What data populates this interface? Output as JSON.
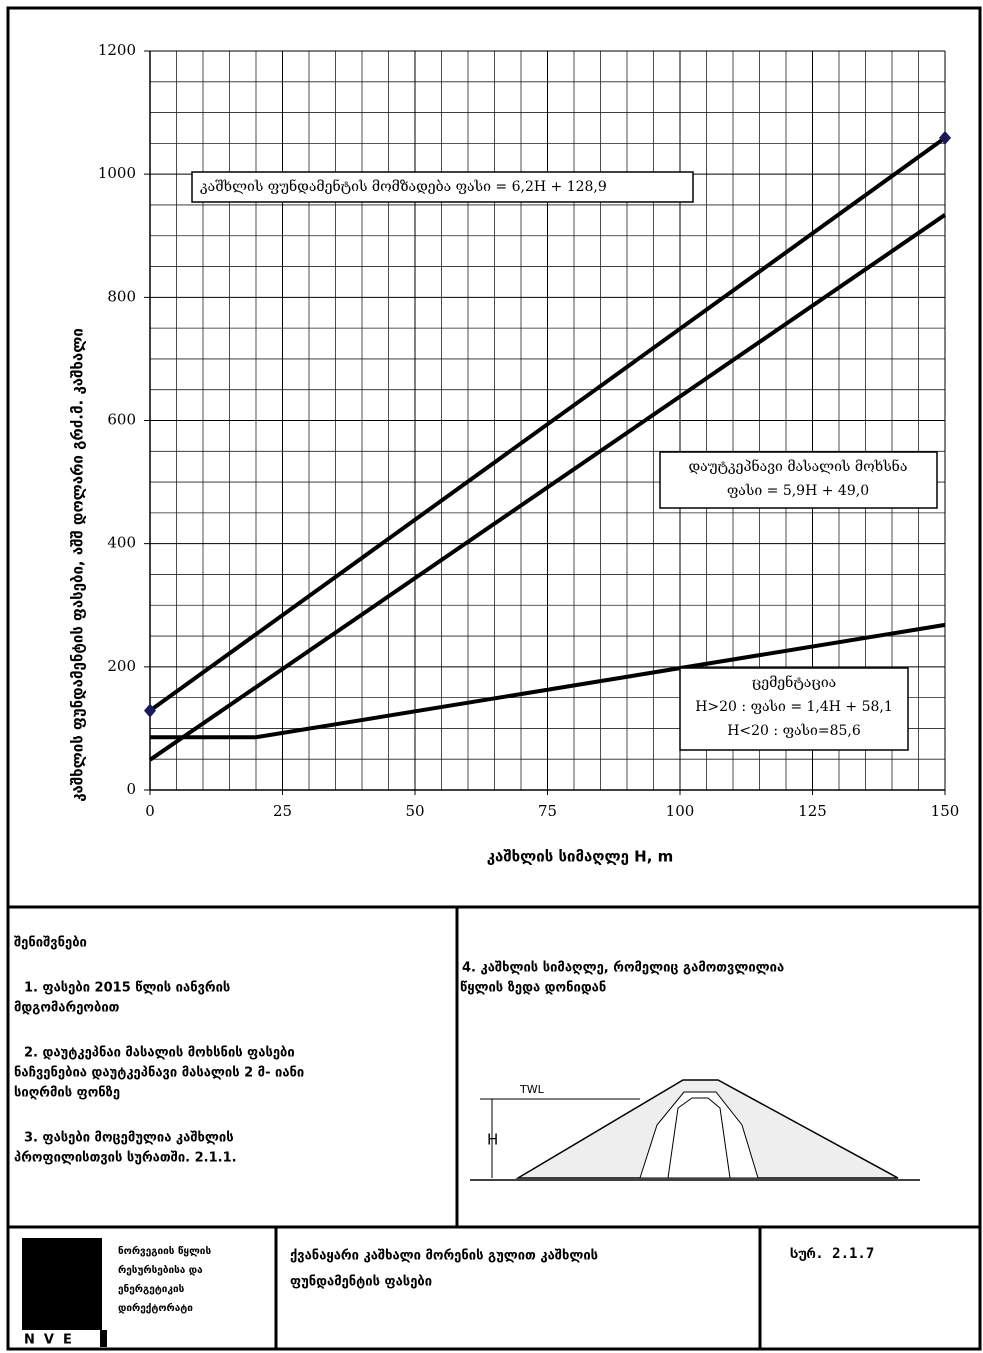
{
  "chart_data": {
    "type": "line",
    "y_label": "კაშხლის ფუნდამენტის ფასები,  აშშ დოლარი გრძ.მ. კაშხალი",
    "x_label": "კაშხლის სიმაღლე H, m",
    "xlim": [
      0,
      150
    ],
    "ylim": [
      0,
      1200
    ],
    "xticks": [
      0,
      25,
      50,
      75,
      100,
      125,
      150
    ],
    "yticks": [
      0,
      200,
      400,
      600,
      800,
      1000,
      1200
    ],
    "x_minor_ticks": [
      5,
      10,
      15,
      20,
      30,
      35,
      40,
      45,
      55,
      60,
      65,
      70,
      80,
      85,
      90,
      95,
      105,
      110,
      115,
      120,
      130,
      135,
      140,
      145
    ],
    "y_minor_ticks": [
      50,
      100,
      150,
      250,
      300,
      350,
      450,
      500,
      550,
      650,
      700,
      750,
      850,
      900,
      950,
      1050,
      1100,
      1150
    ],
    "grid": true,
    "series": [
      {
        "color": "#000000",
        "x": [
          0,
          150
        ],
        "values": [
          128.9,
          1058.9
        ],
        "markers": true,
        "marker_color": "#1a1a5a"
      },
      {
        "color": "#000000",
        "x": [
          0,
          150
        ],
        "values": [
          49.0,
          934.0
        ],
        "markers": false
      },
      {
        "color": "#000000",
        "x": [
          0,
          20,
          150
        ],
        "values": [
          85.6,
          85.6,
          268.1
        ],
        "markers": false
      }
    ],
    "annotations": [
      {
        "lines": [
          "კაშხლის ფუნდამენტის მომზადება ფასი = 6,2H + 128,9"
        ]
      },
      {
        "lines": [
          "დაუტკეპნავი მასალის მოხსნა",
          "ფასი = 5,9H + 49,0"
        ]
      },
      {
        "lines": [
          "ცემენტაცია",
          "H>20 : ფასი = 1,4H + 58,1",
          "H<20 : ფასი=85,6"
        ]
      }
    ]
  },
  "notes": {
    "title": "შენიშვნები",
    "items": [
      [
        "1. ფასები 2015 წლის იანვრის",
        "მდგომარეობით"
      ],
      [
        "2. დაუტკეპნაი მასალის მოხსნის ფასები",
        "ნაჩვენებია დაუტკეპნავი მასალის 2 მ- იანი",
        "სიღრმის ფონზე"
      ],
      [
        "3. ფასები მოცემულია კაშხლის",
        "პროფილისთვის სურათში. 2.1.1."
      ]
    ],
    "note4": [
      "4.  კაშხლის სიმაღლე, რომელიც გამოთვლილია",
      "წყლის ზედა დონიდან"
    ],
    "diagram": {
      "water_label": "TWL",
      "height_label": "H"
    }
  },
  "footer": {
    "logo": "NVE",
    "org": [
      "ნორვეგიის წყლის",
      "რესურსებისა და",
      "ენერგეტიკის",
      "დირექტორატი"
    ],
    "title": [
      "ქვანაყარი კაშხალი მორენის გულით კაშხლის",
      "ფუნდამენტის ფასები"
    ],
    "figure": "სურ. 2.1.7"
  }
}
